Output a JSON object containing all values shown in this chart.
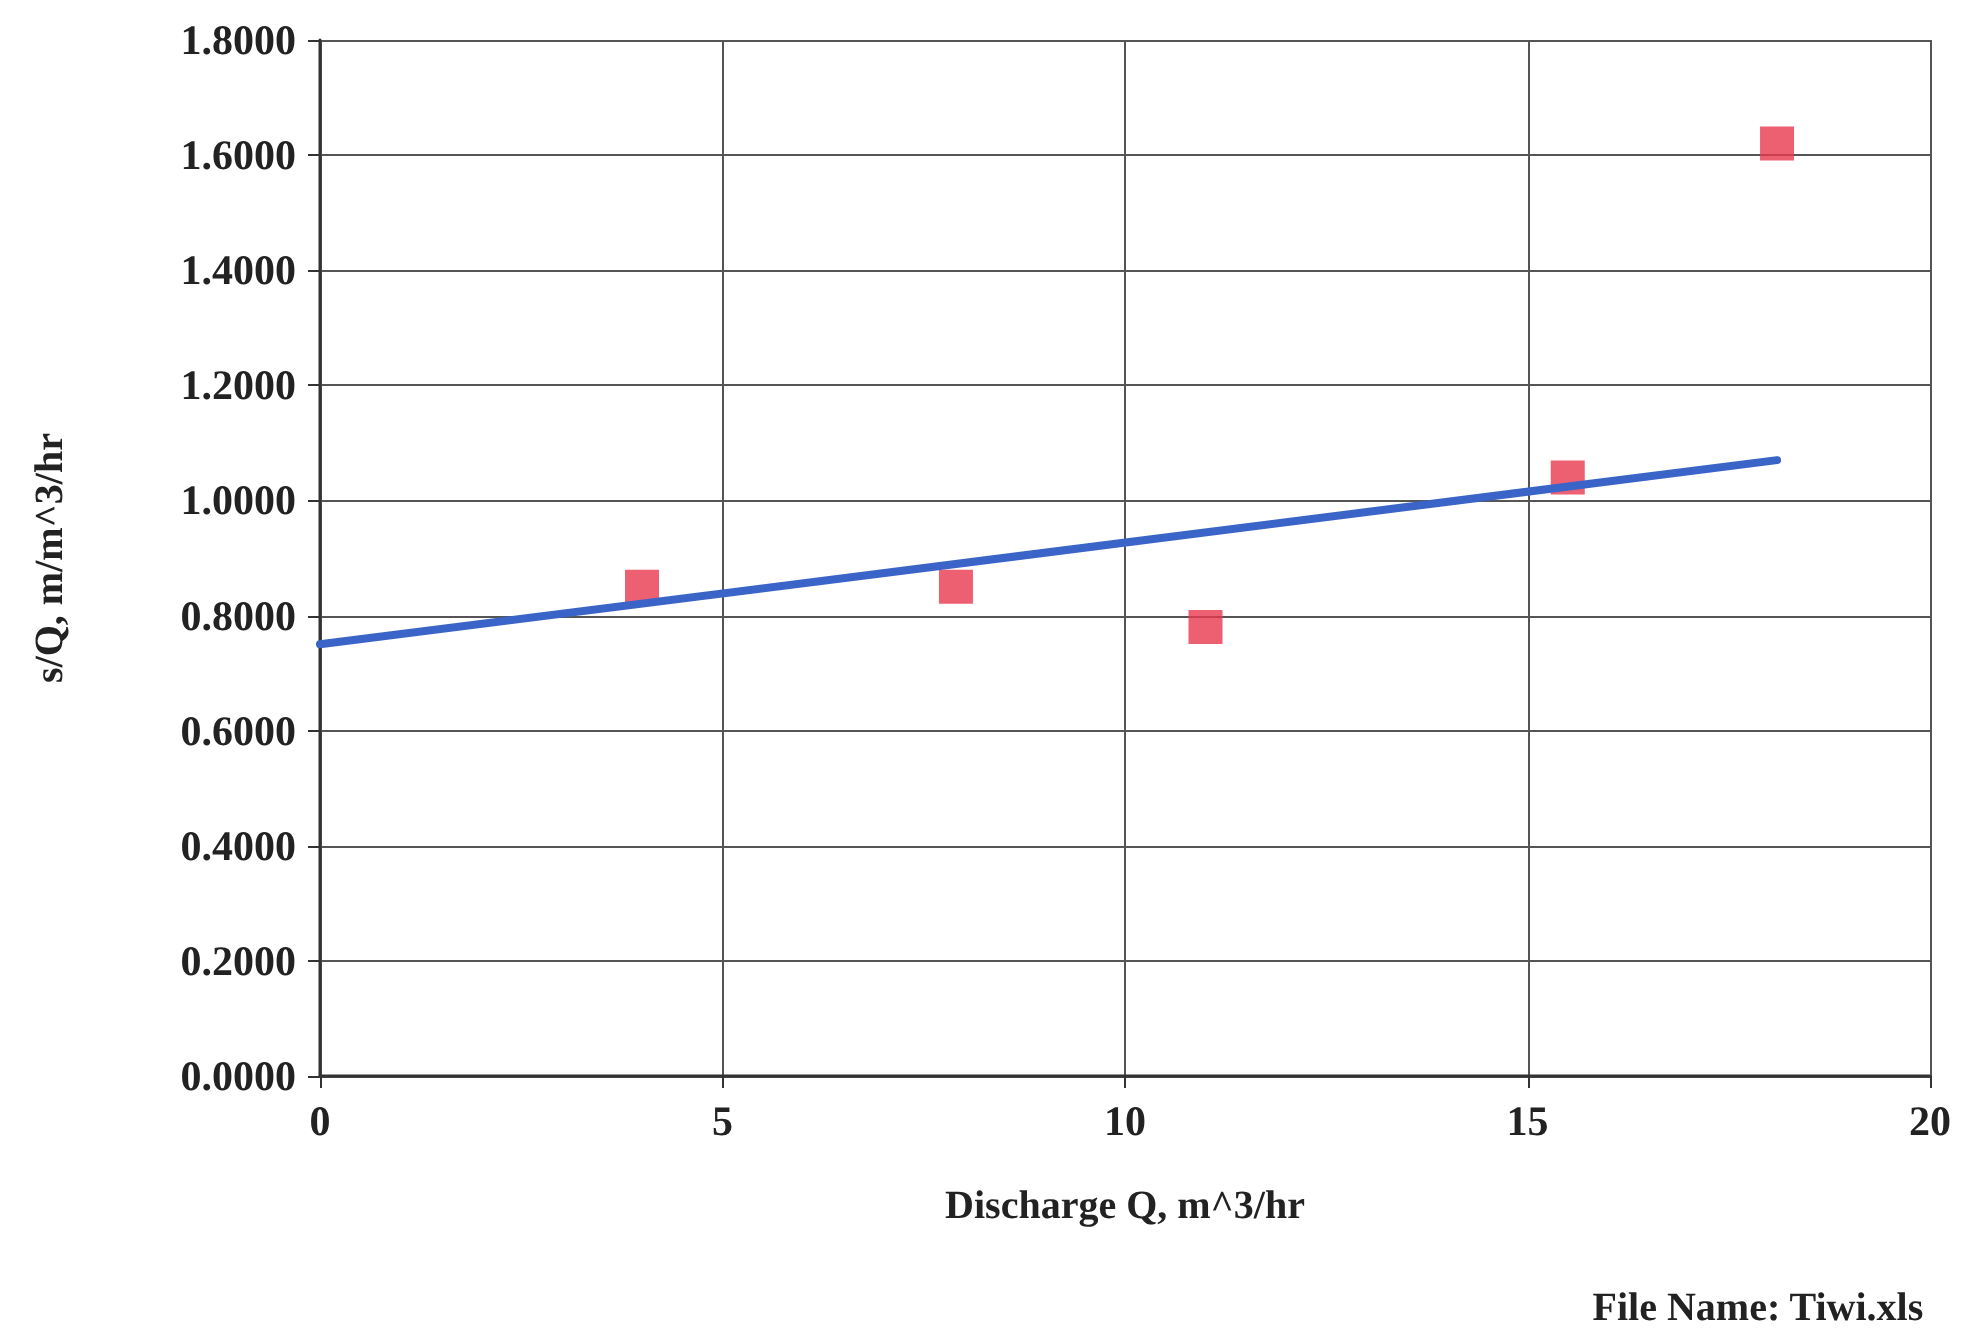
{
  "chart_data": {
    "type": "scatter",
    "xlabel": "Discharge Q, m^3/hr",
    "ylabel": "s/Q, m/m^3/hr",
    "annotations": [
      "File Name: Tiwi.xls"
    ],
    "xlim": [
      0,
      20
    ],
    "xticks": [
      0,
      5,
      10,
      15,
      20
    ],
    "ylim": [
      0,
      1.8
    ],
    "yticks": [
      {
        "value": 0,
        "label": "0.0000"
      },
      {
        "value": 0.2,
        "label": "0.2000"
      },
      {
        "value": 0.4,
        "label": "0.4000"
      },
      {
        "value": 0.6,
        "label": "0.6000"
      },
      {
        "value": 0.8,
        "label": "0.8000"
      },
      {
        "value": 1.0,
        "label": "1.0000"
      },
      {
        "value": 1.2,
        "label": "1.2000"
      },
      {
        "value": 1.4,
        "label": "1.4000"
      },
      {
        "value": 1.6,
        "label": "1.6000"
      },
      {
        "value": 1.8,
        "label": "1.8000"
      }
    ],
    "grid": true,
    "marker": "square",
    "series": [
      {
        "color": "#e8384f",
        "x": [
          4.0,
          7.9,
          15.5
        ],
        "values": [
          0.85,
          0.85,
          1.04
        ]
      },
      {
        "color": "#e8384f",
        "x": [
          11.0,
          18.1
        ],
        "values": [
          0.78,
          1.62
        ]
      },
      {
        "type": "line",
        "color": "#3a64c8",
        "marker": "none",
        "x": [
          0,
          18.1
        ],
        "values": [
          0.75,
          1.07
        ]
      }
    ]
  }
}
